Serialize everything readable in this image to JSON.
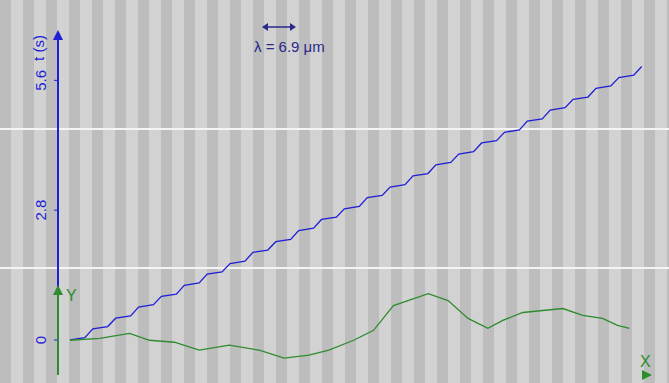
{
  "chart_data": [
    {
      "type": "line",
      "y_label": "t (s)",
      "annotations": [
        "λ = 6.9 μm"
      ],
      "x": [
        3.6,
        8.1,
        10.5,
        15.0,
        17.4,
        21.9,
        24.3,
        28.8,
        31.2,
        35.7,
        38.1,
        42.6,
        45.0,
        49.5,
        51.9,
        56.4,
        58.8,
        63.3,
        65.7,
        70.2,
        72.6,
        77.1,
        79.5,
        84.0,
        86.4,
        90.9,
        93.3,
        97.8,
        100.2,
        104.7,
        107.1,
        111.6,
        114.0,
        118.5,
        120.9,
        125.4,
        127.8,
        132.3,
        134.7,
        139.2,
        141.6,
        146.1,
        148.5,
        153.0,
        155.4,
        159.9,
        162.3,
        166.8,
        169.2,
        173.7,
        176.1
      ],
      "values": [
        0,
        0.05,
        0.24,
        0.29,
        0.47,
        0.52,
        0.71,
        0.76,
        0.94,
        0.99,
        1.18,
        1.23,
        1.42,
        1.47,
        1.65,
        1.7,
        1.89,
        1.94,
        2.12,
        2.17,
        2.36,
        2.41,
        2.6,
        2.65,
        2.83,
        2.88,
        3.07,
        3.12,
        3.3,
        3.35,
        3.54,
        3.59,
        3.78,
        3.83,
        4.01,
        4.06,
        4.25,
        4.3,
        4.48,
        4.53,
        4.72,
        4.77,
        4.96,
        5.01,
        5.19,
        5.24,
        5.43,
        5.48,
        5.66,
        5.71,
        5.9
      ],
      "color": "#1f1fd6",
      "xlim": [
        0,
        178
      ],
      "ylim": [
        0,
        6.6
      ],
      "yticks": [
        0,
        2.8,
        5.6
      ],
      "tick_labels": "y"
    },
    {
      "type": "line",
      "x_label": "X",
      "y_label": "Y",
      "x": [
        3.6,
        12.6,
        21.6,
        27.6,
        35.1,
        42.6,
        51.7,
        60.7,
        68.2,
        75.7,
        81.7,
        89.2,
        95.2,
        101.2,
        111.7,
        117.7,
        123.7,
        129.7,
        134.2,
        140.2,
        146.2,
        152.3,
        158.3,
        164.3,
        168.8,
        172.4
      ],
      "values": [
        10.5,
        11.1,
        12.6,
        10.5,
        9.9,
        7.5,
        9.0,
        7.5,
        5.1,
        6.0,
        7.5,
        10.5,
        13.5,
        21.0,
        24.6,
        22.5,
        17.1,
        14.1,
        16.5,
        18.9,
        19.5,
        20.1,
        18.0,
        17.1,
        15.0,
        14.1
      ],
      "color": "#2e8b2e",
      "xlim": [
        0,
        178
      ],
      "ylim": [
        0,
        26
      ],
      "tick_labels": false
    }
  ]
}
